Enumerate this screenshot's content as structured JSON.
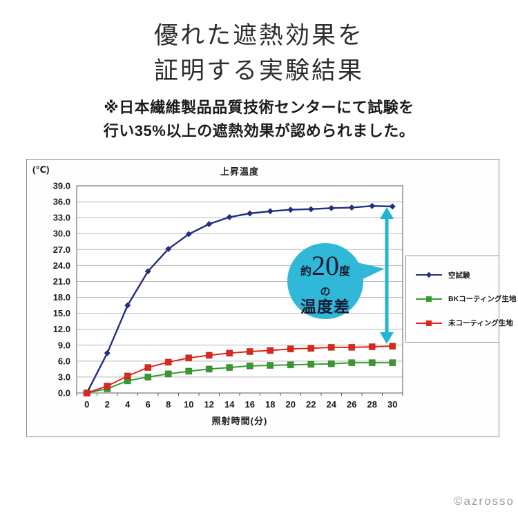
{
  "page": {
    "title_line1": "優れた遮熱効果を",
    "title_line2": "証明する実験結果",
    "subtitle_line1": "※日本繊維製品品質技術センターにて試験を",
    "subtitle_line2": "行い35%以上の遮熱効果が認められました。",
    "copyright": "©azrosso"
  },
  "annotation": {
    "line1_prefix": "約",
    "line1_big": "20",
    "line1_suffix": "度",
    "line2": "の",
    "line3": "温度差",
    "bubble_color": "#2fb8d8",
    "arrow_color": "#22b4d6",
    "text_color": "#181830"
  },
  "chart_data": {
    "type": "line",
    "title": "上昇温度",
    "y_unit_label": "(℃)",
    "xlabel": "照射時間(分)",
    "ylim": [
      0,
      39
    ],
    "y_tick_step": 3,
    "grid": true,
    "legend_position": "right",
    "categories": [
      0,
      2,
      4,
      6,
      8,
      10,
      12,
      14,
      16,
      18,
      20,
      22,
      24,
      26,
      28,
      30
    ],
    "series": [
      {
        "name": "空試験",
        "color": "#232e7e",
        "marker": "diamond",
        "values": [
          0.0,
          7.5,
          16.5,
          22.9,
          27.1,
          29.9,
          31.8,
          33.1,
          33.8,
          34.2,
          34.5,
          34.6,
          34.8,
          34.9,
          35.2,
          35.1
        ]
      },
      {
        "name": "BKコーティング生地",
        "color": "#2f9e2f",
        "marker": "square",
        "values": [
          0.0,
          0.8,
          2.3,
          3.0,
          3.6,
          4.1,
          4.5,
          4.8,
          5.1,
          5.2,
          5.3,
          5.4,
          5.5,
          5.7,
          5.7,
          5.7
        ]
      },
      {
        "name": "未コーティング生地",
        "color": "#e0251c",
        "marker": "square",
        "values": [
          0.0,
          1.3,
          3.2,
          4.8,
          5.8,
          6.6,
          7.1,
          7.5,
          7.8,
          8.0,
          8.3,
          8.4,
          8.6,
          8.6,
          8.7,
          8.8
        ]
      }
    ],
    "gridline_color": "#b8b8b8",
    "border_color": "#777777"
  }
}
